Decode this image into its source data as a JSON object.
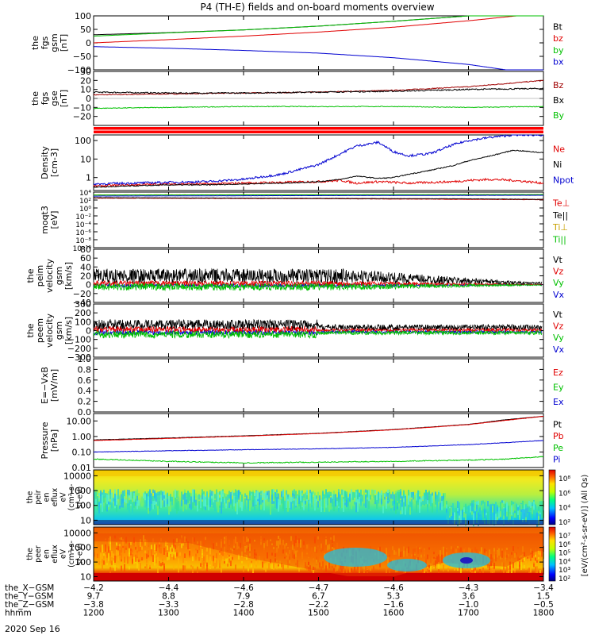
{
  "title": "P4 (TH-E) fields and on-board moments overview",
  "date": "2020 Sep 16",
  "chart_data": [
    {
      "id": "fgs_gsm",
      "type": "line",
      "ylabel": [
        "the",
        "fgs",
        "gsm",
        "[nT]"
      ],
      "ylim": [
        -100,
        100
      ],
      "ytick_labels": [
        "100",
        "50",
        "0",
        "−50",
        "−100"
      ],
      "ytick_values": [
        100,
        50,
        0,
        -50,
        -100
      ],
      "x": [
        1200,
        1300,
        1400,
        1500,
        1600,
        1700,
        1800
      ],
      "series": [
        {
          "name": "Bt",
          "color": "#000000",
          "values": [
            30,
            38,
            48,
            62,
            80,
            100,
            125
          ]
        },
        {
          "name": "bz",
          "color": "#e00000",
          "values": [
            0,
            12,
            25,
            40,
            58,
            82,
            110
          ]
        },
        {
          "name": "by",
          "color": "#00c000",
          "values": [
            25,
            37,
            48,
            62,
            80,
            100,
            125
          ]
        },
        {
          "name": "bx",
          "color": "#0000d0",
          "values": [
            -14,
            -20,
            -28,
            -38,
            -55,
            -80,
            -120
          ]
        }
      ]
    },
    {
      "id": "fgs_gse",
      "type": "line",
      "ylabel": [
        "the",
        "fgs",
        "gse",
        "[nT]"
      ],
      "ylim": [
        -30,
        30
      ],
      "ytick_labels": [
        "30",
        "20",
        "10",
        "0",
        "−10",
        "−20"
      ],
      "ytick_values": [
        30,
        20,
        10,
        0,
        -10,
        -20
      ],
      "x": [
        1200,
        1300,
        1400,
        1500,
        1600,
        1700,
        1800
      ],
      "series": [
        {
          "name": "Bz",
          "color": "#a00000",
          "values": [
            4,
            5,
            6,
            7,
            9,
            13,
            20
          ]
        },
        {
          "name": "Bx",
          "color": "#000000",
          "values": [
            7,
            6,
            6,
            7,
            8,
            10,
            11
          ]
        },
        {
          "name": "By",
          "color": "#00c000",
          "values": [
            -11,
            -10,
            -9,
            -9,
            -9,
            -10,
            -9
          ]
        }
      ]
    },
    {
      "id": "flag_bar",
      "type": "bar",
      "color": "#ff0000"
    },
    {
      "id": "density",
      "type": "line",
      "ylabel": [
        "Density",
        "[cm-3]"
      ],
      "ylog": true,
      "ylim": [
        0.2,
        200
      ],
      "ytick_labels": [
        "100",
        "10",
        "1"
      ],
      "ytick_values": [
        100,
        10,
        1
      ],
      "x": [
        1200,
        1250,
        1300,
        1350,
        1400,
        1450,
        1500,
        1530,
        1550,
        1580,
        1600,
        1620,
        1650,
        1680,
        1700,
        1730,
        1760,
        1800
      ],
      "series": [
        {
          "name": "Ne",
          "color": "#e00000",
          "values": [
            0.35,
            0.4,
            0.45,
            0.45,
            0.5,
            0.55,
            0.6,
            0.7,
            0.5,
            0.6,
            0.55,
            0.5,
            0.55,
            0.6,
            0.7,
            0.8,
            0.7,
            0.5
          ]
        },
        {
          "name": "Ni",
          "color": "#000000",
          "values": [
            0.3,
            0.35,
            0.4,
            0.4,
            0.45,
            0.5,
            0.6,
            0.8,
            1.2,
            0.9,
            1.0,
            1.5,
            2.5,
            4.5,
            8,
            15,
            30,
            22
          ]
        },
        {
          "name": "Npot",
          "color": "#0000d0",
          "values": [
            0.45,
            0.5,
            0.55,
            0.6,
            0.8,
            1.5,
            5,
            20,
            50,
            80,
            25,
            15,
            20,
            60,
            100,
            150,
            200,
            200
          ]
        }
      ]
    },
    {
      "id": "moqt",
      "type": "line",
      "ylabel": [
        "moqt3",
        "[eV]"
      ],
      "ylog": true,
      "ylim": [
        1e-10,
        10000
      ],
      "ytick_labels": [
        "10⁴",
        "10²",
        "10⁰",
        "10⁻²",
        "10⁻⁴",
        "10⁻⁶",
        "10⁻⁸",
        "10⁻¹⁰"
      ],
      "ytick_values": [
        10000,
        100,
        1,
        0.01,
        0.0001,
        1e-06,
        1e-08,
        1e-10
      ],
      "x": [
        1200,
        1300,
        1400,
        1500,
        1600,
        1700,
        1800
      ],
      "series": [
        {
          "name": "Te⊥",
          "color": "#e00000",
          "values": [
            300,
            280,
            250,
            220,
            180,
            150,
            120
          ]
        },
        {
          "name": "Te||",
          "color": "#000000",
          "values": [
            400,
            350,
            300,
            260,
            230,
            200,
            150
          ]
        },
        {
          "name": "Ti⊥",
          "color": "#c8a000",
          "values": [
            2000,
            2100,
            2200,
            2300,
            2400,
            2500,
            2600
          ]
        },
        {
          "name": "Ti||",
          "color": "#00c000",
          "values": [
            1800,
            1900,
            2000,
            2100,
            2200,
            2300,
            2400
          ]
        },
        {
          "name": "",
          "color": "#0000d0",
          "values": [
            1000,
            1100,
            1200,
            1300,
            1400,
            1500,
            1600
          ]
        }
      ]
    },
    {
      "id": "peim",
      "type": "line",
      "ylabel": [
        "the",
        "peim",
        "velocity",
        "gsm",
        "[km/s]"
      ],
      "ylim": [
        -40,
        80
      ],
      "ytick_labels": [
        "80",
        "60",
        "40",
        "20",
        "0",
        "−20",
        "−40"
      ],
      "ytick_values": [
        80,
        60,
        40,
        20,
        0,
        -20,
        -40
      ],
      "x": [
        1200,
        1800
      ],
      "series": [
        {
          "name": "Vt",
          "color": "#000000"
        },
        {
          "name": "Vz",
          "color": "#e00000"
        },
        {
          "name": "Vy",
          "color": "#00c000"
        },
        {
          "name": "Vx",
          "color": "#0000d0"
        }
      ]
    },
    {
      "id": "peem",
      "type": "line",
      "ylabel": [
        "the",
        "peem",
        "velocity",
        "gsm",
        "[km/s]"
      ],
      "ylim": [
        -300,
        300
      ],
      "ytick_labels": [
        "300",
        "200",
        "100",
        "0",
        "−100",
        "−200",
        "−300"
      ],
      "ytick_values": [
        300,
        200,
        100,
        0,
        -100,
        -200,
        -300
      ],
      "x": [
        1200,
        1800
      ],
      "series": [
        {
          "name": "Vt",
          "color": "#000000"
        },
        {
          "name": "Vz",
          "color": "#e00000"
        },
        {
          "name": "Vy",
          "color": "#00c000"
        },
        {
          "name": "Vx",
          "color": "#0000d0"
        }
      ]
    },
    {
      "id": "efield",
      "type": "line",
      "ylabel": [
        "E=−VxB",
        "[mV/m]"
      ],
      "ylim": [
        0,
        1
      ],
      "ytick_labels": [
        "1.0",
        "0.8",
        "0.6",
        "0.4",
        "0.2",
        "0.0"
      ],
      "ytick_values": [
        1,
        0.8,
        0.6,
        0.4,
        0.2,
        0
      ],
      "series": [
        {
          "name": "Ez",
          "color": "#e00000"
        },
        {
          "name": "Ey",
          "color": "#00c000"
        },
        {
          "name": "Ex",
          "color": "#0000d0"
        }
      ]
    },
    {
      "id": "pressure",
      "type": "line",
      "ylabel": [
        "Pressure",
        "[nPa]"
      ],
      "ylog": true,
      "ylim": [
        0.01,
        30
      ],
      "ytick_labels": [
        "10.00",
        "1.00",
        "0.10",
        "0.01"
      ],
      "ytick_values": [
        10,
        1,
        0.1,
        0.01
      ],
      "x": [
        1200,
        1300,
        1400,
        1500,
        1600,
        1700,
        1750,
        1800
      ],
      "series": [
        {
          "name": "Pt",
          "color": "#000000",
          "values": [
            0.6,
            0.8,
            1.1,
            1.6,
            2.8,
            6,
            12,
            20
          ]
        },
        {
          "name": "Pb",
          "color": "#e00000",
          "values": [
            0.55,
            0.75,
            1.05,
            1.55,
            2.7,
            5.8,
            11,
            20
          ]
        },
        {
          "name": "Pe",
          "color": "#00c000",
          "values": [
            0.035,
            0.025,
            0.02,
            0.022,
            0.025,
            0.03,
            0.035,
            0.05
          ]
        },
        {
          "name": "Pi",
          "color": "#0000d0",
          "values": [
            0.1,
            0.12,
            0.14,
            0.16,
            0.2,
            0.3,
            0.4,
            0.55
          ]
        }
      ]
    },
    {
      "id": "peir_spec",
      "type": "heatmap",
      "ylabel": [
        "the",
        "peir",
        "en",
        "eflux",
        "eV",
        "(cm²-s-",
        "sr-eV)"
      ],
      "ylog": true,
      "ylim": [
        5,
        25000
      ],
      "ytick_labels": [
        "10000",
        "1000",
        "100",
        "10"
      ],
      "ytick_values": [
        10000,
        1000,
        100,
        10
      ],
      "colorbar_ticks": [
        "10⁸",
        "10⁶",
        "10⁴",
        "10²"
      ]
    },
    {
      "id": "peer_spec",
      "type": "heatmap",
      "ylabel": [
        "the",
        "peer",
        "en",
        "eflux",
        "eV",
        "(cm²-s-",
        "sr-eV)"
      ],
      "ylog": true,
      "ylim": [
        5,
        25000
      ],
      "ytick_labels": [
        "10000",
        "1000",
        "100",
        "10"
      ],
      "ytick_values": [
        10000,
        1000,
        100,
        10
      ],
      "colorbar_ticks": [
        "10⁷",
        "10⁶",
        "10⁵",
        "10⁴",
        "10³",
        "10²"
      ],
      "colorbar_label": "[eV/(cm²-s-sr-eV)] (All Qs)"
    }
  ],
  "x_axis": {
    "row_labels": [
      "the_X−GSM",
      "the_Y−GSM",
      "the_Z−GSM",
      "hhmm"
    ],
    "columns": [
      [
        "−4.2",
        "9.7",
        "−3.8",
        "1200"
      ],
      [
        "−4.4",
        "8.8",
        "−3.3",
        "1300"
      ],
      [
        "−4.6",
        "7.9",
        "−2.8",
        "1400"
      ],
      [
        "−4.7",
        "6.7",
        "−2.2",
        "1500"
      ],
      [
        "−4.6",
        "5.3",
        "−1.6",
        "1600"
      ],
      [
        "−4.3",
        "3.6",
        "−1.0",
        "1700"
      ],
      [
        "−3.4",
        "1.5",
        "−0.5",
        "1800"
      ]
    ]
  }
}
